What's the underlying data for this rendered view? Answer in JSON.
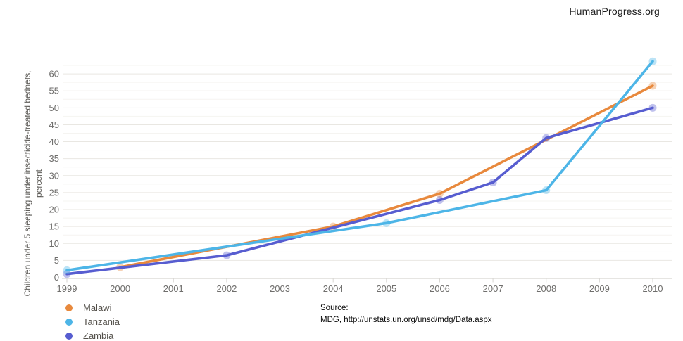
{
  "branding": "HumanProgress.org",
  "source": {
    "label": "Source:",
    "citation": "MDG, http://unstats.un.org/unsd/mdg/Data.aspx"
  },
  "chart_data": {
    "type": "line",
    "title": "",
    "ylabel_line1": "Children under 5 sleeping under insecticide-treated bednets,",
    "ylabel_line2": "percent",
    "x": [
      1999,
      2000,
      2001,
      2002,
      2003,
      2004,
      2005,
      2006,
      2007,
      2008,
      2009,
      2010
    ],
    "yticks": [
      0,
      5,
      10,
      15,
      20,
      25,
      30,
      35,
      40,
      45,
      50,
      55,
      60
    ],
    "ylim": [
      0,
      65
    ],
    "grid": "horizontal only; minor lines every 2.5, major lines every 5",
    "legend_position": "bottom-left",
    "axis_color": "#d7d5d1",
    "grid_major_color": "#e9e7e2",
    "grid_minor_color": "#f5f4f1",
    "tick_label_color": "#6f6e6c",
    "series": [
      {
        "name": "Malawi",
        "color": "#E8893D",
        "points": [
          [
            2000,
            3
          ],
          [
            2004,
            15
          ],
          [
            2006,
            24.7
          ],
          [
            2010,
            56.5
          ]
        ]
      },
      {
        "name": "Tanzania",
        "color": "#4DB5E7",
        "points": [
          [
            1999,
            2.1
          ],
          [
            2005,
            16
          ],
          [
            2008,
            25.7
          ],
          [
            2010,
            63.7
          ]
        ]
      },
      {
        "name": "Zambia",
        "color": "#575DD0",
        "points": [
          [
            1999,
            1
          ],
          [
            2002,
            6.5
          ],
          [
            2006,
            22.8
          ],
          [
            2007,
            28
          ],
          [
            2008,
            41.1
          ],
          [
            2010,
            50
          ]
        ]
      }
    ]
  }
}
